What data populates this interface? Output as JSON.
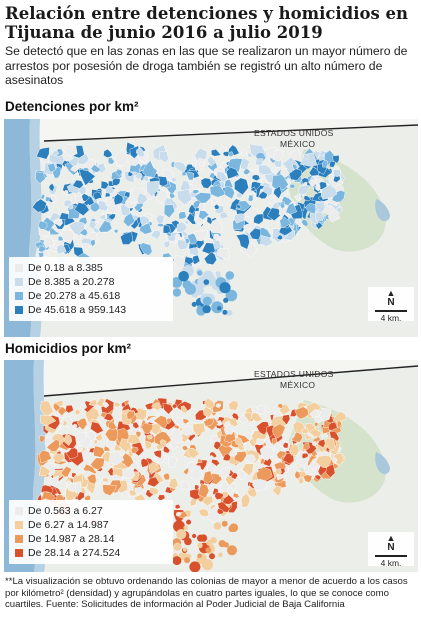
{
  "title": "Relación entre detenciones y homicidios en Tijuana de junio 2016 a julio 2019",
  "subtitle": "Se detectó que en las zonas en las que se realizaron un mayor número de arrestos por posesión de droga también se registró un alto número de asesinatos",
  "maps": [
    {
      "title": "Detenciones por km²",
      "border_label_top": "ESTADOS UNIDOS",
      "border_label_bottom": "MÉXICO",
      "scale_label": "4 km.",
      "north_label": "N",
      "legend": [
        {
          "label": "De 0.18 a 8.385",
          "color": "#ececec"
        },
        {
          "label": "De 8.385 a 20.278",
          "color": "#c9dcec"
        },
        {
          "label": "De 20.278 a 45.618",
          "color": "#7ab6de"
        },
        {
          "label": "De 45.618 a 959.143",
          "color": "#2b7fbd"
        }
      ]
    },
    {
      "title": "Homicidios por km²",
      "border_label_top": "ESTADOS UNIDOS",
      "border_label_bottom": "MÉXICO",
      "scale_label": "4 km.",
      "north_label": "N",
      "legend": [
        {
          "label": "De 0.563 a 6.27",
          "color": "#ececec"
        },
        {
          "label": "De 6.27 a 14.987",
          "color": "#f3cfa0"
        },
        {
          "label": "De 14.987 a 28.14",
          "color": "#eb9a5c"
        },
        {
          "label": "De 28.14 a 274.524",
          "color": "#d9502d"
        }
      ]
    }
  ],
  "footnote": "**La visualización se obtuvo ordenando las colonias de mayor a menor de acuerdo a los casos por kilómetro² (densidad) y agrupándolas en cuatro partes iguales, lo que se conoce como cuartiles. Fuente: Solicitudes de información al Poder Judicial de Baja California"
}
